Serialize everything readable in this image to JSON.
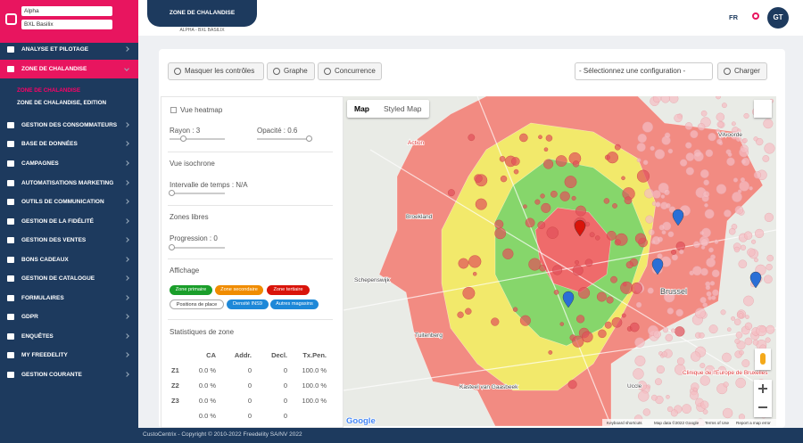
{
  "sidebar": {
    "selects": [
      "Alpha",
      "BXL Basilix"
    ],
    "menu": [
      "ANALYSE ET PILOTAGE",
      "ZONE DE CHALANDISE",
      "GESTION DES CONSOMMATEURS",
      "BASE DE DONNÉES",
      "CAMPAGNES",
      "AUTOMATISATIONS MARKETING",
      "OUTILS DE COMMUNICATION",
      "GESTION DE LA FIDÉLITÉ",
      "GESTION DES VENTES",
      "BONS CADEAUX",
      "GESTION DE CATALOGUE",
      "FORMULAIRES",
      "GDPR",
      "ENQUÊTES",
      "MY FREEDELITY",
      "GESTION COURANTE"
    ],
    "submenu": [
      "ZONE DE CHALANDISE",
      "ZONE DE CHALANDISE, EDITION"
    ]
  },
  "header": {
    "tab": "ZONE DE CHALANDISE",
    "subtitle": "ALPHA - BXL BASILIX",
    "lang": "FR",
    "avatar": "GT"
  },
  "toolbar": {
    "buttons": [
      "Masquer les contrôles",
      "Graphe",
      "Concurrence"
    ],
    "config_select": "- Sélectionnez une configuration -",
    "load_button": "Charger"
  },
  "controls": {
    "heatmap": "Vue heatmap",
    "rayon": "Rayon : 3",
    "opacite": "Opacité : 0.6",
    "isochrone": "Vue isochrone",
    "intervalle": "Intervalle de temps : N/A",
    "zones_libres": "Zones libres",
    "progression": "Progression : 0",
    "affichage": "Affichage",
    "badges": [
      "Zone primaire",
      "Zone secondaire",
      "Zone tertiaire",
      "Positions de place",
      "Densité INS9",
      "Autres magasins"
    ],
    "stats_title": "Statistiques de zone",
    "table": {
      "headers": [
        "CA",
        "Addr.",
        "Decl.",
        "Tx.Pen."
      ],
      "rows": [
        [
          "Z1",
          "0.0 %",
          "0",
          "0",
          "100.0 %"
        ],
        [
          "Z2",
          "0.0 %",
          "0",
          "0",
          "100.0 %"
        ],
        [
          "Z3",
          "0.0 %",
          "0",
          "0",
          "100.0 %"
        ]
      ],
      "total": [
        "0.0 %",
        "0",
        "0"
      ]
    }
  },
  "map": {
    "tabs": [
      "Map",
      "Styled Map"
    ],
    "places": [
      "Vilvoorde",
      "Broekland",
      "Action",
      "Schepenswijk",
      "Brussel",
      "Tuitenberg",
      "Kasteel van Gaasbeek",
      "Uccle",
      "Clinique de l'Europe de Bruxelles"
    ],
    "logo": "Google",
    "attribution": [
      "Keyboard shortcuts",
      "Map data ©2022 Google",
      "Terms of Use",
      "Report a map error"
    ]
  },
  "footer": "CustoCentrix - Copyright © 2010-2022 Freedelity SA/NV 2022"
}
